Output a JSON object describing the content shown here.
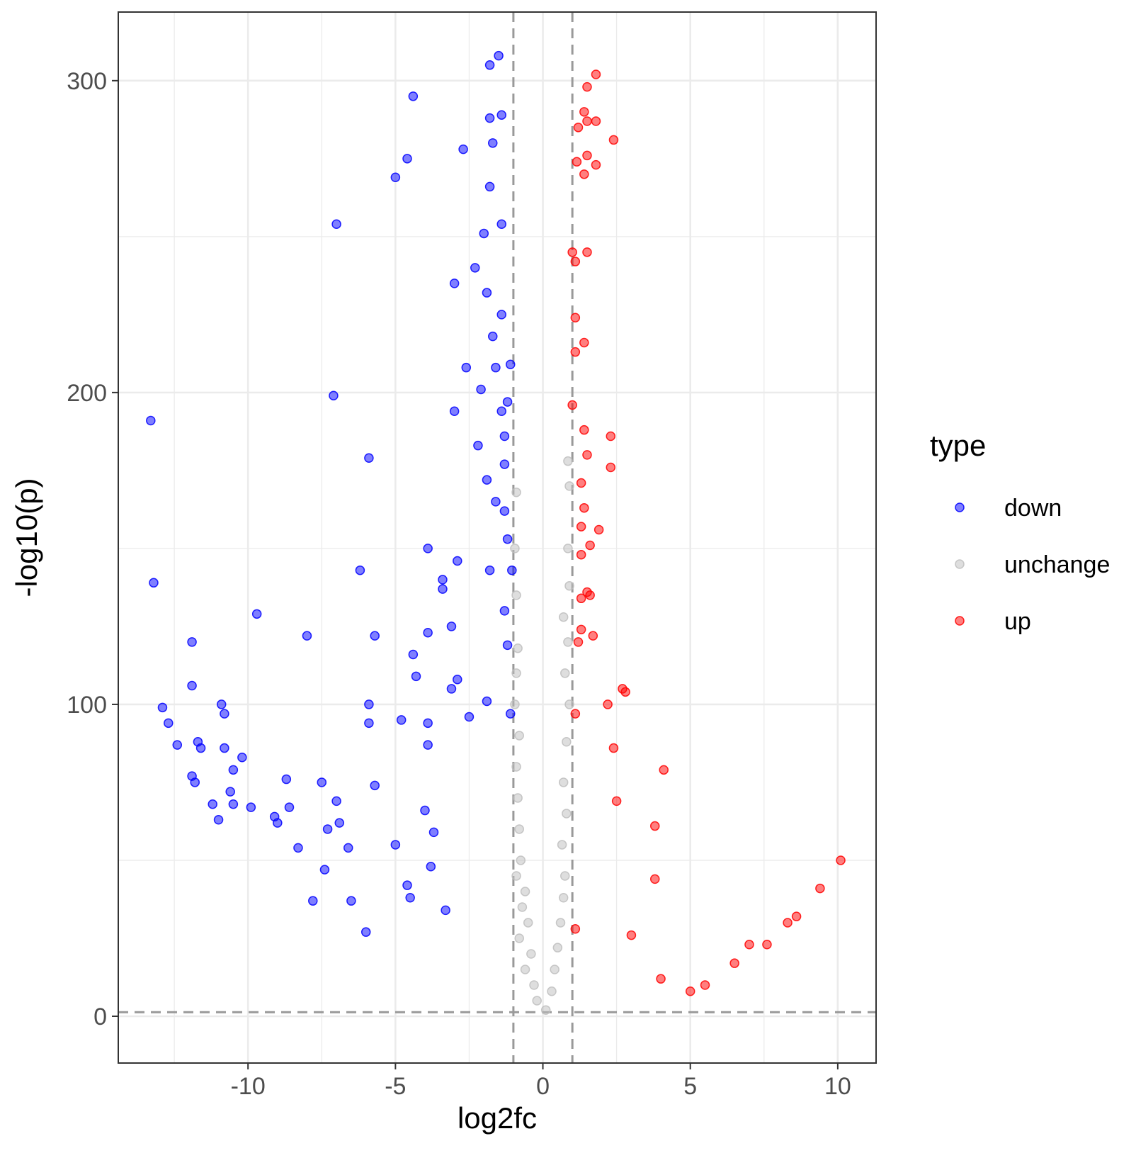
{
  "chart_data": {
    "type": "scatter",
    "title": "",
    "xlabel": "log2fc",
    "ylabel": "-log10(p)",
    "xlim": [
      -14.4,
      11.3
    ],
    "ylim": [
      -15,
      322
    ],
    "xticks": [
      -10,
      -5,
      0,
      5,
      10
    ],
    "xtick_labels": [
      "-10",
      "-5",
      "0",
      "5",
      "10"
    ],
    "yticks": [
      0,
      100,
      200,
      300
    ],
    "ytick_labels": [
      "0",
      "100",
      "200",
      "300"
    ],
    "grid": true,
    "thresholds": {
      "log2fc": [
        -1,
        1
      ],
      "neg_log10_p": 1.3
    },
    "legend": {
      "title": "type",
      "position": "right",
      "entries": [
        {
          "key": "down",
          "label": "down",
          "color": "#0000FF"
        },
        {
          "key": "unchange",
          "label": "unchange",
          "color": "#BEBEBE"
        },
        {
          "key": "up",
          "label": "up",
          "color": "#FF0000"
        }
      ]
    },
    "series": [
      {
        "name": "down",
        "color": "#0000FF",
        "points": [
          [
            -13.3,
            191
          ],
          [
            -13.2,
            139
          ],
          [
            -12.9,
            99
          ],
          [
            -12.7,
            94
          ],
          [
            -12.4,
            87
          ],
          [
            -11.9,
            120
          ],
          [
            -11.9,
            106
          ],
          [
            -11.9,
            77
          ],
          [
            -11.8,
            75
          ],
          [
            -11.7,
            88
          ],
          [
            -11.6,
            86
          ],
          [
            -11.2,
            68
          ],
          [
            -11.0,
            63
          ],
          [
            -10.9,
            100
          ],
          [
            -10.8,
            97
          ],
          [
            -10.8,
            86
          ],
          [
            -10.6,
            72
          ],
          [
            -10.5,
            79
          ],
          [
            -10.5,
            68
          ],
          [
            -10.2,
            83
          ],
          [
            -9.9,
            67
          ],
          [
            -9.7,
            129
          ],
          [
            -9.1,
            64
          ],
          [
            -9.0,
            62
          ],
          [
            -8.7,
            76
          ],
          [
            -8.6,
            67
          ],
          [
            -8.3,
            54
          ],
          [
            -8.0,
            122
          ],
          [
            -7.8,
            37
          ],
          [
            -7.5,
            75
          ],
          [
            -7.4,
            47
          ],
          [
            -7.3,
            60
          ],
          [
            -7.1,
            199
          ],
          [
            -7.0,
            254
          ],
          [
            -7.0,
            69
          ],
          [
            -6.9,
            62
          ],
          [
            -6.6,
            54
          ],
          [
            -6.5,
            37
          ],
          [
            -6.2,
            143
          ],
          [
            -6.0,
            27
          ],
          [
            -5.9,
            179
          ],
          [
            -5.9,
            100
          ],
          [
            -5.9,
            94
          ],
          [
            -5.7,
            122
          ],
          [
            -5.7,
            74
          ],
          [
            -5.0,
            269
          ],
          [
            -5.0,
            55
          ],
          [
            -4.8,
            95
          ],
          [
            -4.6,
            275
          ],
          [
            -4.6,
            42
          ],
          [
            -4.5,
            38
          ],
          [
            -4.4,
            295
          ],
          [
            -4.4,
            116
          ],
          [
            -4.3,
            109
          ],
          [
            -4.0,
            66
          ],
          [
            -3.9,
            150
          ],
          [
            -3.9,
            123
          ],
          [
            -3.9,
            94
          ],
          [
            -3.9,
            87
          ],
          [
            -3.8,
            48
          ],
          [
            -3.7,
            59
          ],
          [
            -3.4,
            140
          ],
          [
            -3.4,
            137
          ],
          [
            -3.3,
            34
          ],
          [
            -3.1,
            125
          ],
          [
            -3.1,
            105
          ],
          [
            -3.0,
            235
          ],
          [
            -3.0,
            194
          ],
          [
            -2.9,
            146
          ],
          [
            -2.9,
            108
          ],
          [
            -2.7,
            278
          ],
          [
            -2.6,
            208
          ],
          [
            -2.5,
            96
          ],
          [
            -2.3,
            240
          ],
          [
            -2.2,
            183
          ],
          [
            -2.1,
            201
          ],
          [
            -2.0,
            251
          ],
          [
            -1.9,
            232
          ],
          [
            -1.9,
            172
          ],
          [
            -1.9,
            101
          ],
          [
            -1.8,
            305
          ],
          [
            -1.8,
            288
          ],
          [
            -1.8,
            266
          ],
          [
            -1.8,
            143
          ],
          [
            -1.7,
            280
          ],
          [
            -1.7,
            218
          ],
          [
            -1.6,
            208
          ],
          [
            -1.6,
            165
          ],
          [
            -1.5,
            308
          ],
          [
            -1.4,
            289
          ],
          [
            -1.4,
            254
          ],
          [
            -1.4,
            225
          ],
          [
            -1.4,
            194
          ],
          [
            -1.3,
            186
          ],
          [
            -1.3,
            177
          ],
          [
            -1.3,
            162
          ],
          [
            -1.3,
            130
          ],
          [
            -1.2,
            153
          ],
          [
            -1.2,
            119
          ],
          [
            -1.2,
            197
          ],
          [
            -1.1,
            209
          ],
          [
            -1.1,
            97
          ],
          [
            -1.05,
            143
          ]
        ]
      },
      {
        "name": "unchange",
        "color": "#BEBEBE",
        "points": [
          [
            -0.9,
            168
          ],
          [
            -0.9,
            135
          ],
          [
            -0.95,
            150
          ],
          [
            -0.85,
            118
          ],
          [
            -0.9,
            110
          ],
          [
            -0.95,
            100
          ],
          [
            -0.8,
            90
          ],
          [
            -0.9,
            80
          ],
          [
            -0.85,
            70
          ],
          [
            -0.8,
            60
          ],
          [
            -0.75,
            50
          ],
          [
            -0.9,
            45
          ],
          [
            -0.6,
            40
          ],
          [
            -0.7,
            35
          ],
          [
            -0.5,
            30
          ],
          [
            -0.8,
            25
          ],
          [
            -0.4,
            20
          ],
          [
            -0.6,
            15
          ],
          [
            -0.3,
            10
          ],
          [
            -0.2,
            5
          ],
          [
            0.1,
            2
          ],
          [
            0.3,
            8
          ],
          [
            0.4,
            15
          ],
          [
            0.5,
            22
          ],
          [
            0.6,
            30
          ],
          [
            0.7,
            38
          ],
          [
            0.75,
            45
          ],
          [
            0.65,
            55
          ],
          [
            0.8,
            65
          ],
          [
            0.7,
            75
          ],
          [
            0.8,
            88
          ],
          [
            0.9,
            100
          ],
          [
            0.75,
            110
          ],
          [
            0.85,
            120
          ],
          [
            0.7,
            128
          ],
          [
            0.9,
            138
          ],
          [
            0.85,
            150
          ],
          [
            0.9,
            170
          ],
          [
            0.85,
            178
          ]
        ]
      },
      {
        "name": "up",
        "color": "#FF0000",
        "points": [
          [
            1.0,
            245
          ],
          [
            1.0,
            196
          ],
          [
            1.1,
            242
          ],
          [
            1.1,
            224
          ],
          [
            1.1,
            213
          ],
          [
            1.1,
            97
          ],
          [
            1.1,
            28
          ],
          [
            1.15,
            274
          ],
          [
            1.2,
            285
          ],
          [
            1.2,
            120
          ],
          [
            1.3,
            171
          ],
          [
            1.3,
            157
          ],
          [
            1.3,
            148
          ],
          [
            1.3,
            134
          ],
          [
            1.3,
            124
          ],
          [
            1.4,
            290
          ],
          [
            1.4,
            270
          ],
          [
            1.4,
            216
          ],
          [
            1.4,
            188
          ],
          [
            1.4,
            163
          ],
          [
            1.5,
            298
          ],
          [
            1.5,
            287
          ],
          [
            1.5,
            276
          ],
          [
            1.5,
            245
          ],
          [
            1.5,
            180
          ],
          [
            1.5,
            136
          ],
          [
            1.6,
            151
          ],
          [
            1.6,
            135
          ],
          [
            1.7,
            122
          ],
          [
            1.8,
            302
          ],
          [
            1.8,
            287
          ],
          [
            1.8,
            273
          ],
          [
            1.9,
            156
          ],
          [
            2.2,
            100
          ],
          [
            2.3,
            186
          ],
          [
            2.3,
            176
          ],
          [
            2.4,
            281
          ],
          [
            2.4,
            86
          ],
          [
            2.5,
            69
          ],
          [
            2.7,
            105
          ],
          [
            2.8,
            104
          ],
          [
            3.0,
            26
          ],
          [
            3.8,
            61
          ],
          [
            3.8,
            44
          ],
          [
            4.0,
            12
          ],
          [
            4.1,
            79
          ],
          [
            5.0,
            8
          ],
          [
            5.5,
            10
          ],
          [
            6.5,
            17
          ],
          [
            7.0,
            23
          ],
          [
            7.6,
            23
          ],
          [
            8.3,
            30
          ],
          [
            8.6,
            32
          ],
          [
            9.4,
            41
          ],
          [
            10.1,
            50
          ]
        ]
      }
    ]
  }
}
